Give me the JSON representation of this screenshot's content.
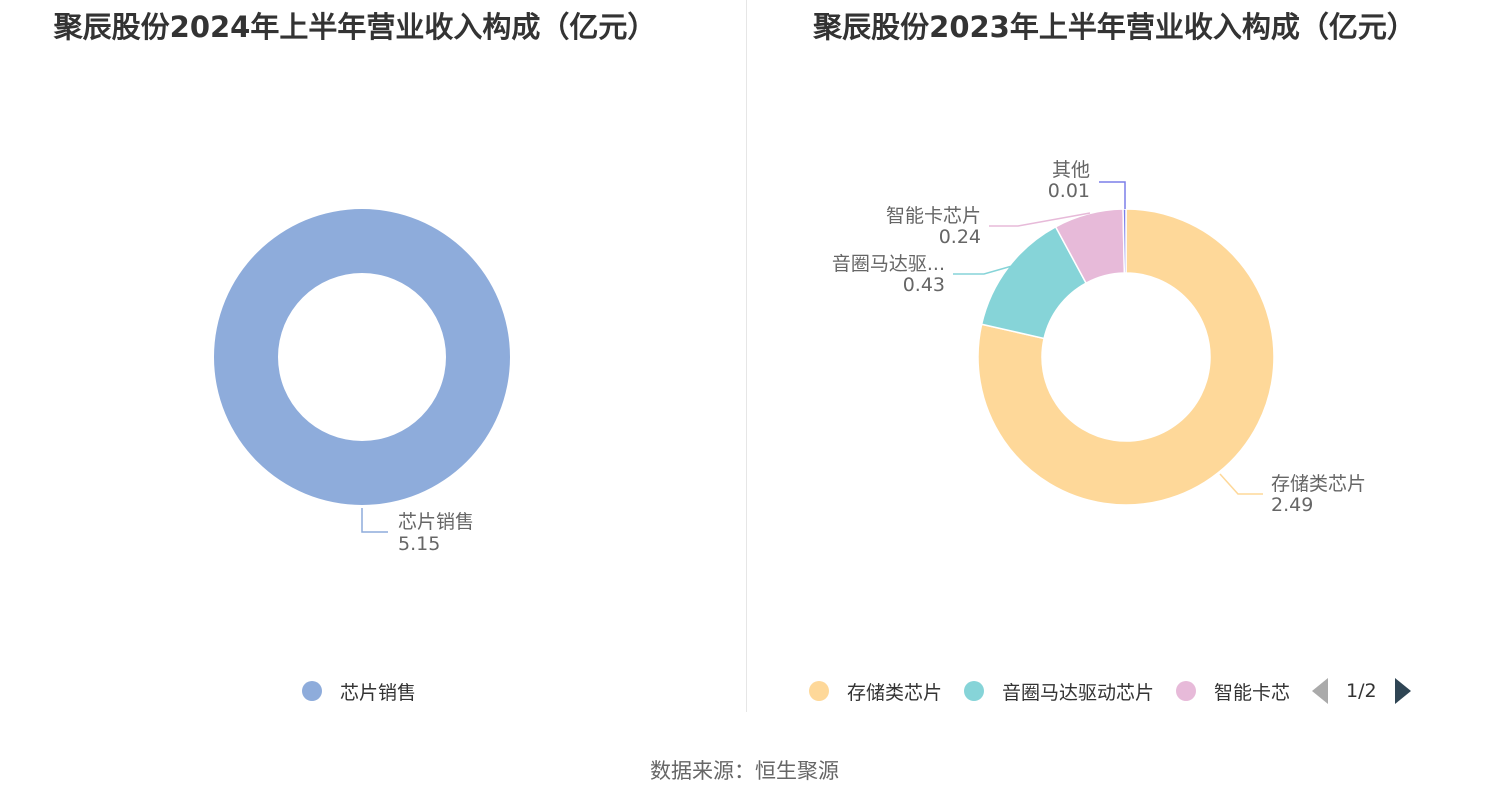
{
  "chart_data": [
    {
      "type": "pie",
      "title": "聚辰股份2024年上半年营业收入构成（亿元）",
      "slices": [
        {
          "label": "芯片销售",
          "value": 5.15,
          "color": "#8eacdb"
        }
      ],
      "legend": {
        "items": [
          "芯片销售"
        ]
      }
    },
    {
      "type": "pie",
      "title": "聚辰股份2023年上半年营业收入构成（亿元）",
      "slices": [
        {
          "label": "存储类芯片",
          "display_label": "存储类芯片",
          "value": 2.49,
          "color": "#fed899"
        },
        {
          "label": "音圈马达驱动芯片",
          "display_label": "音圈马达驱...",
          "value": 0.43,
          "color": "#86d4d8"
        },
        {
          "label": "智能卡芯片",
          "display_label": "智能卡芯片",
          "value": 0.24,
          "color": "#e7bad9"
        },
        {
          "label": "其他",
          "display_label": "其他",
          "value": 0.01,
          "color": "#7b7fe8"
        }
      ],
      "legend": {
        "items": [
          "存储类芯片",
          "音圈马达驱动芯片",
          "智能卡芯"
        ],
        "page": "1/2"
      }
    }
  ],
  "source": "数据来源：恒生聚源"
}
